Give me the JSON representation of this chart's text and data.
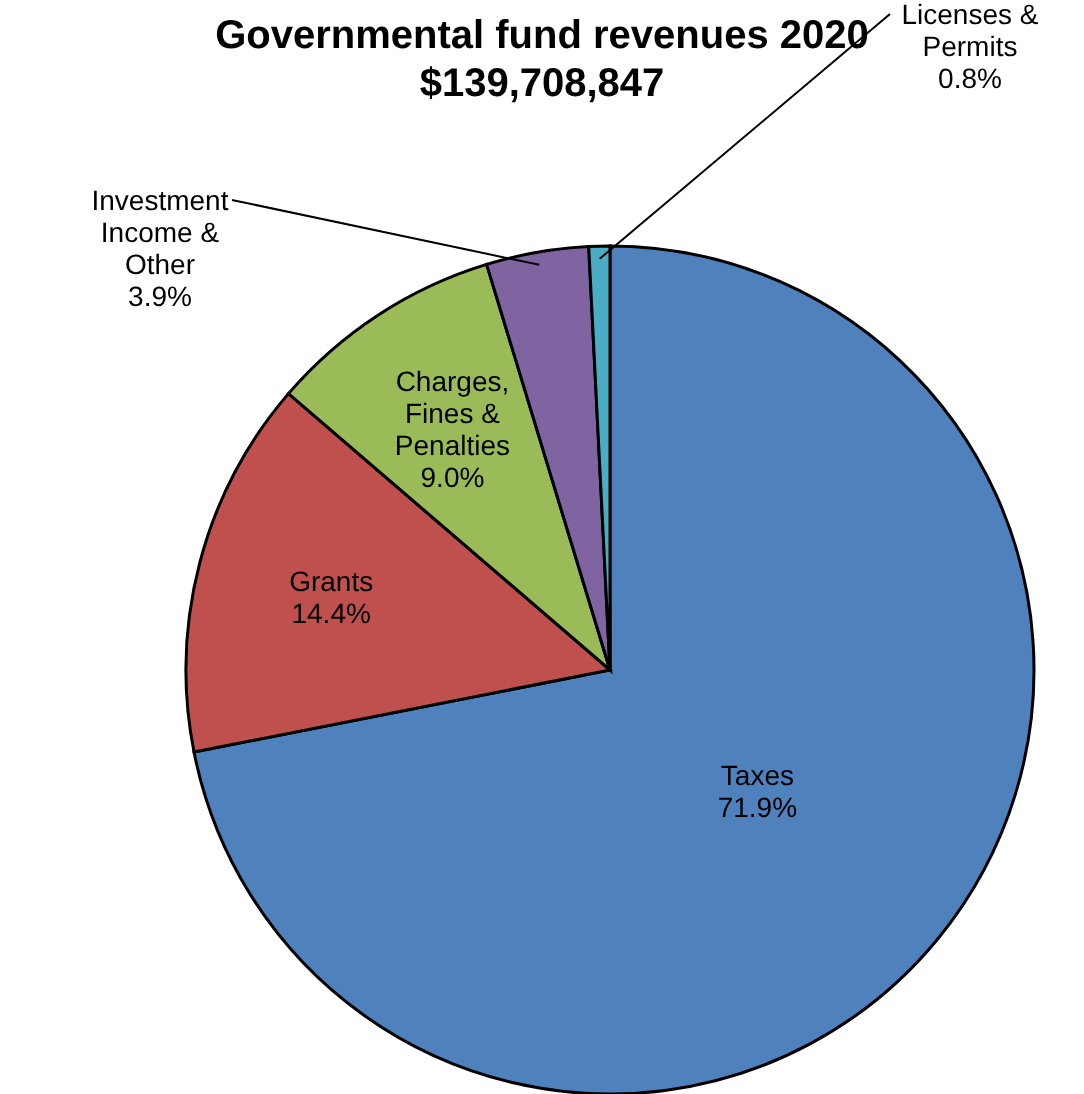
{
  "chart_data": {
    "type": "pie",
    "title": "Governmental fund revenues 2020",
    "subtitle": "$139,708,847",
    "categories": [
      "Taxes",
      "Grants",
      "Charges, Fines & Penalties",
      "Investment Income & Other",
      "Licenses & Permits"
    ],
    "values": [
      71.9,
      14.4,
      9.0,
      3.9,
      0.8
    ],
    "colors": [
      "#4f81bd",
      "#c0504d",
      "#9bbb59",
      "#8064a2",
      "#4bacc6"
    ],
    "value_labels": [
      "71.9%",
      "14.4%",
      "9.0%",
      "3.9%",
      "0.8%"
    ],
    "legend": false
  }
}
